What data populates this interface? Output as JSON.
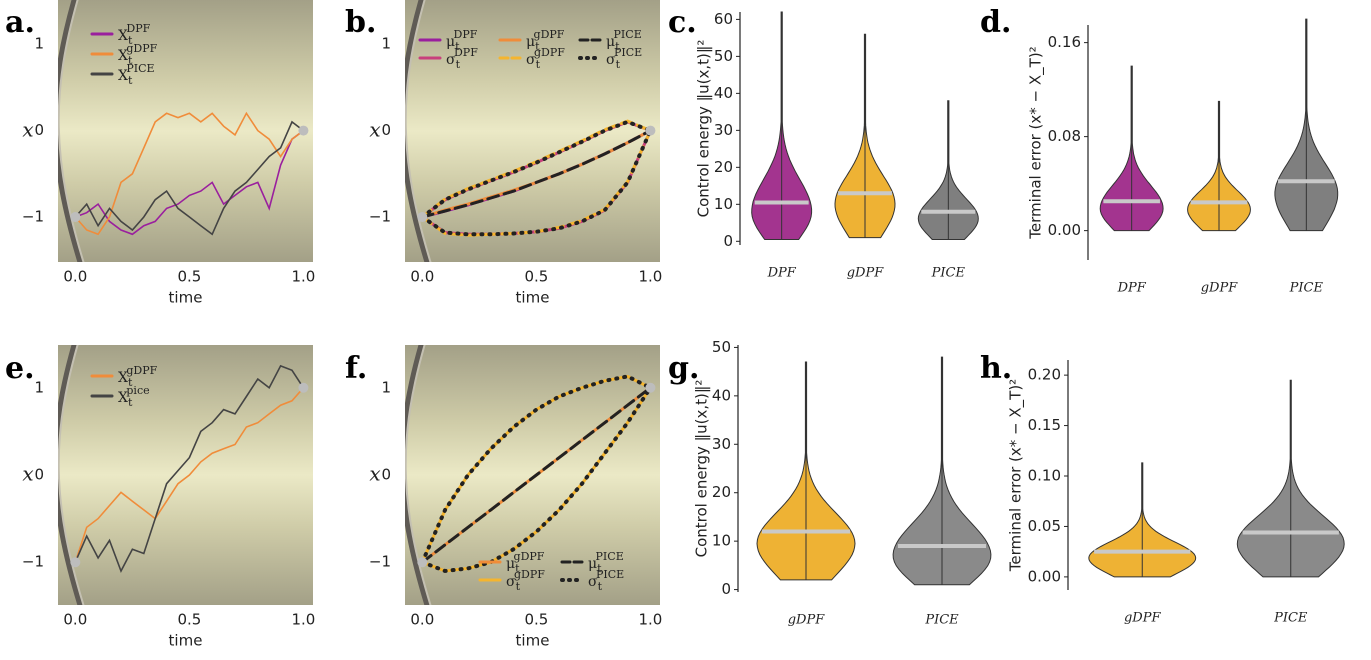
{
  "chart_data": [
    {
      "type": "line",
      "label": "a.",
      "xlabel": "time",
      "ylabel": "x",
      "legend": "upper left",
      "xlim": [
        -0.076,
        1.042
      ],
      "ylim": [
        -1.52,
        1.51
      ],
      "xticks": [
        {
          "value": 0,
          "label": "0.0"
        },
        {
          "value": 0.5,
          "label": "0.5"
        },
        {
          "value": 1,
          "label": "1.0"
        }
      ],
      "yticks": [
        {
          "value": -1,
          "label": "−1"
        },
        0,
        1
      ],
      "x": [
        0,
        0.05,
        0.1,
        0.15,
        0.2,
        0.25,
        0.3,
        0.35,
        0.4,
        0.45,
        0.5,
        0.55,
        0.6,
        0.65,
        0.7,
        0.75,
        0.8,
        0.85,
        0.9,
        0.95,
        1
      ],
      "series": [
        {
          "name": "X_t^DPF",
          "color": "#9a1f9e",
          "style": "solid",
          "values": [
            -1,
            -0.95,
            -0.85,
            -1.05,
            -1.15,
            -1.2,
            -1.1,
            -1.05,
            -0.9,
            -0.85,
            -0.75,
            -0.7,
            -0.6,
            -0.85,
            -0.75,
            -0.65,
            -0.6,
            -0.9,
            -0.4,
            -0.1,
            0
          ]
        },
        {
          "name": "X_t^gDPF",
          "color": "#f08c3a",
          "style": "solid",
          "values": [
            -1,
            -1.15,
            -1.2,
            -1.0,
            -0.6,
            -0.5,
            -0.2,
            0.1,
            0.2,
            0.15,
            0.2,
            0.1,
            0.2,
            0.05,
            -0.05,
            0.2,
            0.0,
            -0.1,
            -0.3,
            -0.1,
            0
          ]
        },
        {
          "name": "X_t^PICE",
          "color": "#444444",
          "style": "solid",
          "values": [
            -1,
            -0.85,
            -1.1,
            -0.9,
            -1.05,
            -1.15,
            -1.0,
            -0.8,
            -0.7,
            -0.9,
            -1.0,
            -1.1,
            -1.2,
            -0.9,
            -0.7,
            -0.6,
            -0.45,
            -0.3,
            -0.2,
            0.1,
            0
          ]
        }
      ]
    },
    {
      "type": "line",
      "label": "b.",
      "xlabel": "time",
      "ylabel": "x",
      "legend": "upper center",
      "xlim": [
        -0.076,
        1.042
      ],
      "ylim": [
        -1.52,
        1.51
      ],
      "xticks": [
        {
          "value": 0,
          "label": "0.0"
        },
        {
          "value": 0.5,
          "label": "0.5"
        },
        {
          "value": 1,
          "label": "1.0"
        }
      ],
      "yticks": [
        {
          "value": -1,
          "label": "−1"
        },
        0,
        1
      ],
      "x": [
        0,
        0.1,
        0.2,
        0.3,
        0.4,
        0.5,
        0.6,
        0.7,
        0.8,
        0.9,
        1
      ],
      "series": [
        {
          "name": "μ_t^DPF",
          "color": "#9a1f9e",
          "style": "solid",
          "values": [
            -1,
            -0.93,
            -0.86,
            -0.78,
            -0.7,
            -0.6,
            -0.5,
            -0.39,
            -0.27,
            -0.14,
            0
          ]
        },
        {
          "name": "σ_t^DPF",
          "color": "#c8407c",
          "style": "solid",
          "upper": [
            -1,
            -0.8,
            -0.68,
            -0.58,
            -0.48,
            -0.37,
            -0.25,
            -0.13,
            0.0,
            0.1,
            0
          ],
          "lower": [
            -1,
            -1.18,
            -1.2,
            -1.2,
            -1.19,
            -1.17,
            -1.13,
            -1.05,
            -0.92,
            -0.6,
            0
          ]
        },
        {
          "name": "μ_t^gDPF",
          "color": "#f08c3a",
          "style": "solid",
          "values": [
            -1,
            -0.92,
            -0.85,
            -0.77,
            -0.69,
            -0.6,
            -0.5,
            -0.39,
            -0.27,
            -0.14,
            0
          ]
        },
        {
          "name": "σ_t^gDPF",
          "color": "#f5b52e",
          "style": "dashed",
          "upper": [
            -1,
            -0.79,
            -0.67,
            -0.57,
            -0.47,
            -0.36,
            -0.24,
            -0.12,
            0.01,
            0.11,
            0
          ],
          "lower": [
            -1,
            -1.19,
            -1.21,
            -1.2,
            -1.19,
            -1.17,
            -1.12,
            -1.04,
            -0.91,
            -0.59,
            0
          ]
        },
        {
          "name": "μ_t^PICE",
          "color": "#222222",
          "style": "dashed",
          "values": [
            -1,
            -0.93,
            -0.86,
            -0.78,
            -0.7,
            -0.6,
            -0.5,
            -0.39,
            -0.27,
            -0.14,
            0
          ]
        },
        {
          "name": "σ_t^PICE",
          "color": "#222222",
          "style": "dotted",
          "upper": [
            -1,
            -0.8,
            -0.68,
            -0.58,
            -0.48,
            -0.37,
            -0.25,
            -0.13,
            0.0,
            0.1,
            0
          ],
          "lower": [
            -1,
            -1.18,
            -1.2,
            -1.2,
            -1.19,
            -1.17,
            -1.13,
            -1.05,
            -0.92,
            -0.6,
            0
          ]
        }
      ]
    },
    {
      "type": "violin",
      "label": "c.",
      "ylabel": "Control energy ‖u(x,t)‖²",
      "ylim": [
        -1,
        62
      ],
      "yticks": [
        0,
        10,
        20,
        30,
        40,
        50,
        60
      ],
      "categories": [
        "DPF",
        "gDPF",
        "PICE"
      ],
      "colors": [
        "#a3348f",
        "#eeb234",
        "#7f7f7f"
      ],
      "means": [
        10.5,
        13,
        8
      ],
      "mins": [
        0.5,
        1,
        0.5
      ],
      "maxs": [
        62,
        56,
        38
      ]
    },
    {
      "type": "violin",
      "label": "d.",
      "ylabel": "Terminal error (x* − X_T)²",
      "ylim": [
        -0.025,
        0.175
      ],
      "yticks": [
        {
          "value": 0,
          "label": "0.00"
        },
        {
          "value": 0.08,
          "label": "0.08"
        },
        {
          "value": 0.16,
          "label": "0.16"
        }
      ],
      "categories": [
        "DPF",
        "gDPF",
        "PICE"
      ],
      "colors": [
        "#a3348f",
        "#eeb234",
        "#7f7f7f"
      ],
      "means": [
        0.025,
        0.024,
        0.042
      ],
      "mins": [
        0,
        0,
        0
      ],
      "maxs": [
        0.14,
        0.11,
        0.18
      ]
    },
    {
      "type": "line",
      "label": "e.",
      "xlabel": "time",
      "ylabel": "x",
      "legend": "upper left",
      "xlim": [
        -0.076,
        1.042
      ],
      "ylim": [
        -1.49,
        1.49
      ],
      "xticks": [
        {
          "value": 0,
          "label": "0.0"
        },
        {
          "value": 0.5,
          "label": "0.5"
        },
        {
          "value": 1,
          "label": "1.0"
        }
      ],
      "yticks": [
        {
          "value": -1,
          "label": "−1"
        },
        0,
        1
      ],
      "x": [
        0,
        0.05,
        0.1,
        0.15,
        0.2,
        0.25,
        0.3,
        0.35,
        0.4,
        0.45,
        0.5,
        0.55,
        0.6,
        0.65,
        0.7,
        0.75,
        0.8,
        0.85,
        0.9,
        0.95,
        1
      ],
      "series": [
        {
          "name": "X_t^gDPF",
          "color": "#f08c3a",
          "style": "solid",
          "values": [
            -1,
            -0.6,
            -0.5,
            -0.35,
            -0.2,
            -0.3,
            -0.4,
            -0.5,
            -0.3,
            -0.1,
            0.0,
            0.15,
            0.25,
            0.3,
            0.35,
            0.55,
            0.6,
            0.7,
            0.8,
            0.85,
            1
          ]
        },
        {
          "name": "X_t^pice",
          "color": "#444444",
          "style": "solid",
          "values": [
            -1,
            -0.7,
            -0.95,
            -0.75,
            -1.1,
            -0.85,
            -0.9,
            -0.5,
            -0.1,
            0.05,
            0.2,
            0.5,
            0.6,
            0.75,
            0.7,
            0.9,
            1.1,
            1.0,
            1.25,
            1.2,
            1
          ]
        }
      ]
    },
    {
      "type": "line",
      "label": "f.",
      "xlabel": "time",
      "ylabel": "x",
      "legend": "lower right",
      "xlim": [
        -0.076,
        1.042
      ],
      "ylim": [
        -1.49,
        1.49
      ],
      "xticks": [
        {
          "value": 0,
          "label": "0.0"
        },
        {
          "value": 0.5,
          "label": "0.5"
        },
        {
          "value": 1,
          "label": "1.0"
        }
      ],
      "yticks": [
        {
          "value": -1,
          "label": "−1"
        },
        0,
        1
      ],
      "x": [
        0,
        0.1,
        0.2,
        0.3,
        0.4,
        0.5,
        0.6,
        0.7,
        0.8,
        0.9,
        1
      ],
      "series": [
        {
          "name": "μ_t^gDPF",
          "color": "#f08c3a",
          "style": "solid",
          "values": [
            -1,
            -0.8,
            -0.6,
            -0.4,
            -0.2,
            0.0,
            0.2,
            0.4,
            0.6,
            0.8,
            1
          ]
        },
        {
          "name": "σ_t^gDPF",
          "color": "#f5b52e",
          "style": "solid",
          "upper": [
            -1,
            -0.4,
            0.0,
            0.3,
            0.55,
            0.75,
            0.9,
            1.0,
            1.08,
            1.13,
            1
          ],
          "lower": [
            -1,
            -1.1,
            -1.07,
            -1.0,
            -0.85,
            -0.65,
            -0.4,
            -0.1,
            0.25,
            0.6,
            1
          ]
        },
        {
          "name": "μ_t^PICE",
          "color": "#222222",
          "style": "dashed",
          "values": [
            -1,
            -0.8,
            -0.6,
            -0.4,
            -0.2,
            0.0,
            0.2,
            0.4,
            0.6,
            0.8,
            1
          ]
        },
        {
          "name": "σ_t^PICE",
          "color": "#222222",
          "style": "dotted",
          "upper": [
            -1,
            -0.4,
            0.0,
            0.3,
            0.55,
            0.75,
            0.9,
            1.0,
            1.08,
            1.13,
            1
          ],
          "lower": [
            -1,
            -1.1,
            -1.07,
            -1.0,
            -0.85,
            -0.65,
            -0.4,
            -0.1,
            0.25,
            0.6,
            1
          ]
        }
      ]
    },
    {
      "type": "violin",
      "label": "g.",
      "ylabel": "Control energy ‖u(x,t)‖²",
      "ylim": [
        -0.5,
        50.5
      ],
      "yticks": [
        0,
        10,
        20,
        30,
        40,
        50
      ],
      "categories": [
        "gDPF",
        "PICE"
      ],
      "colors": [
        "#eeb234",
        "#8a8a8a"
      ],
      "means": [
        12,
        9
      ],
      "mins": [
        2,
        1
      ],
      "maxs": [
        47,
        48
      ]
    },
    {
      "type": "violin",
      "label": "h.",
      "ylabel": "Terminal error (x* − X_T)²",
      "ylim": [
        -0.013,
        0.215
      ],
      "yticks": [
        {
          "value": 0,
          "label": "0.00"
        },
        {
          "value": 0.05,
          "label": "0.05"
        },
        {
          "value": 0.1,
          "label": "0.10"
        },
        {
          "value": 0.15,
          "label": "0.15"
        },
        {
          "value": 0.2,
          "label": "0.20"
        }
      ],
      "categories": [
        "gDPF",
        "PICE"
      ],
      "colors": [
        "#eeb234",
        "#8a8a8a"
      ],
      "means": [
        0.025,
        0.044
      ],
      "mins": [
        0,
        0
      ],
      "maxs": [
        0.113,
        0.195
      ]
    }
  ]
}
